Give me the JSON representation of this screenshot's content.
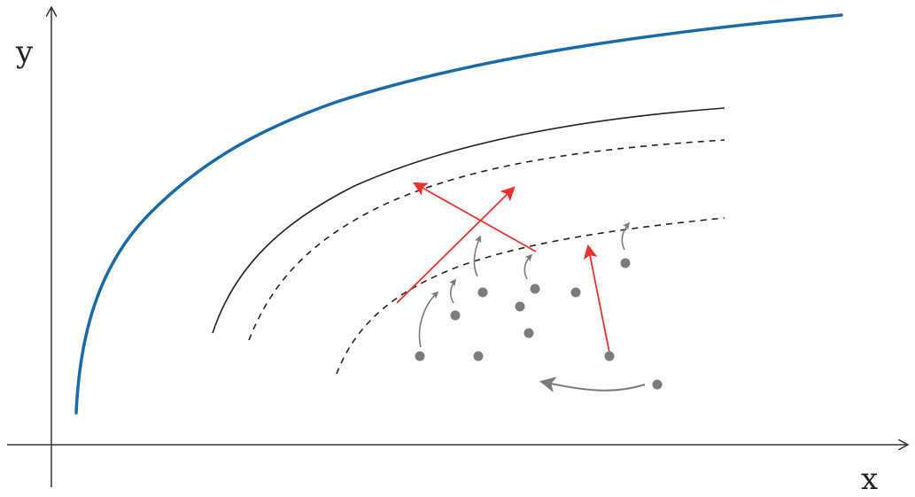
{
  "axes": {
    "x_label": "x",
    "y_label": "y"
  },
  "colors": {
    "frontier": "#1a6aa8",
    "curve": "#222222",
    "dashed": "#222222",
    "red_arrow": "#e8312f",
    "gray": "#7b7b7b"
  },
  "curves": {
    "frontier": "frontier-curve",
    "solid": "reference-curve",
    "dashed_upper": "dashed-curve-upper",
    "dashed_lower": "dashed-curve-lower"
  }
}
